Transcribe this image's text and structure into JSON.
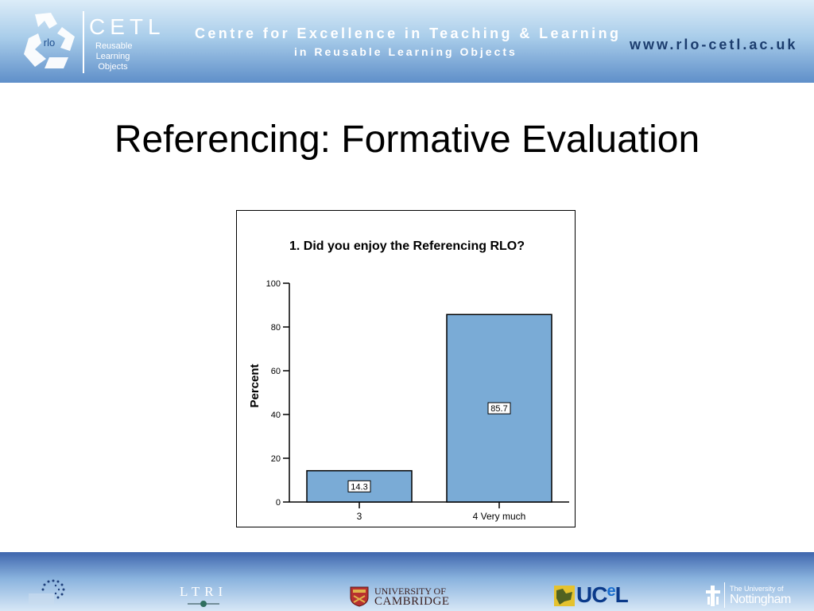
{
  "header": {
    "logo_text": "rlo",
    "cetl": "CETL",
    "cetl_sub": "Reusable Learning Objects",
    "title_line1": "Centre for Excellence in Teaching & Learning",
    "title_line2": "in Reusable Learning Objects",
    "url": "www.rlo-cetl.ac.uk"
  },
  "slide": {
    "title": "Referencing: Formative Evaluation"
  },
  "chart_data": {
    "type": "bar",
    "title": "1. Did you enjoy the Referencing RLO?",
    "xlabel": "",
    "ylabel": "Percent",
    "categories": [
      "3",
      "4 Very much"
    ],
    "values": [
      14.3,
      85.7
    ],
    "data_labels": [
      "14.3",
      "85.7"
    ],
    "ylim": [
      0,
      100
    ],
    "yticks": [
      0,
      20,
      40,
      60,
      80,
      100
    ],
    "bar_color": "#7aabd6",
    "grid": false,
    "legend": "none"
  },
  "footer": {
    "ltri": "LTRI",
    "cambridge_line1": "UNIVERSITY OF",
    "cambridge_line2": "CAMBRIDGE",
    "ucel": "UC",
    "ucel_e": "e",
    "ucel_l": "L",
    "nottingham_small": "The University of",
    "nottingham_big": "Nottingham"
  }
}
